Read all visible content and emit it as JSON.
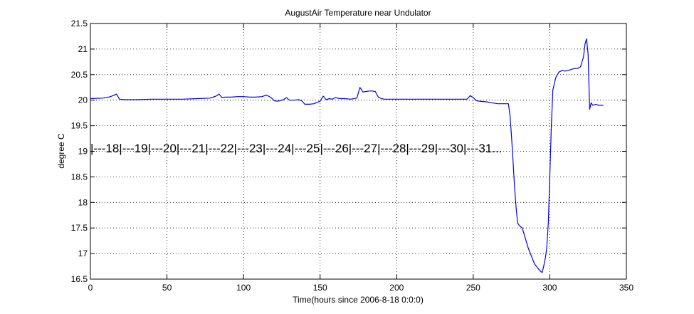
{
  "chart_data": {
    "type": "line",
    "title": "AugustAir Temperature near Undulator",
    "xlabel": "Time(hours since 2006-8-18 0:0:0)",
    "ylabel": "degree C",
    "xlim": [
      0,
      350
    ],
    "ylim": [
      16.5,
      21.5
    ],
    "xticks": [
      0,
      50,
      100,
      150,
      200,
      250,
      300,
      350
    ],
    "yticks": [
      16.5,
      17,
      17.5,
      18,
      18.5,
      19,
      19.5,
      20,
      20.5,
      21,
      21.5
    ],
    "grid": true,
    "line_color": "#0000ee",
    "day_marker_text": "|---18|---19|---20|---21|---22|---23|---24|---25|---26|---27|---28|---29|---30|---31...",
    "series": [
      {
        "x": [
          0,
          8,
          12,
          15,
          17,
          19,
          22,
          30,
          40,
          50,
          60,
          70,
          78,
          82,
          84,
          86,
          88,
          92,
          96,
          100,
          104,
          108,
          112,
          115,
          118,
          120,
          122,
          124,
          126,
          128,
          130,
          133,
          136,
          138,
          140,
          143,
          146,
          150,
          152,
          154,
          156,
          158,
          160,
          163,
          166,
          170,
          174,
          176,
          178,
          180,
          182,
          184,
          186,
          188,
          190,
          192,
          196,
          200,
          210,
          220,
          230,
          240,
          246,
          248,
          250,
          252,
          254,
          258,
          262,
          266,
          270,
          273,
          274,
          275,
          276,
          277,
          278,
          279,
          280,
          282,
          284,
          286,
          288,
          290,
          292,
          294,
          295,
          296,
          297,
          298,
          299,
          300,
          301,
          302,
          304,
          306,
          308,
          310,
          312,
          314,
          316,
          318,
          320,
          322,
          323,
          324,
          325,
          326,
          327,
          328,
          330,
          332,
          335
        ],
        "y": [
          20.03,
          20.04,
          20.06,
          20.09,
          20.12,
          20.02,
          20.01,
          20.01,
          20.02,
          20.02,
          20.02,
          20.03,
          20.04,
          20.08,
          20.12,
          20.05,
          20.06,
          20.06,
          20.07,
          20.07,
          20.06,
          20.06,
          20.07,
          20.1,
          20.05,
          19.99,
          19.98,
          19.99,
          20.01,
          20.05,
          20.0,
          20.0,
          20.01,
          19.99,
          19.92,
          19.92,
          19.93,
          19.98,
          20.08,
          20.01,
          20.03,
          20.02,
          20.05,
          20.03,
          20.03,
          20.02,
          20.04,
          20.25,
          20.16,
          20.17,
          20.18,
          20.18,
          20.17,
          20.06,
          20.03,
          20.02,
          20.02,
          20.02,
          20.02,
          20.02,
          20.02,
          20.02,
          20.02,
          20.09,
          20.05,
          19.99,
          19.98,
          19.97,
          19.95,
          19.93,
          19.93,
          19.93,
          19.7,
          19.3,
          18.8,
          18.3,
          17.9,
          17.6,
          17.55,
          17.5,
          17.3,
          17.1,
          16.95,
          16.8,
          16.72,
          16.65,
          16.63,
          16.75,
          16.9,
          17.1,
          17.6,
          18.5,
          19.5,
          20.2,
          20.45,
          20.55,
          20.58,
          20.57,
          20.58,
          20.6,
          20.62,
          20.62,
          20.65,
          20.85,
          21.1,
          21.2,
          20.9,
          19.82,
          19.95,
          19.9,
          19.92,
          19.9,
          19.9
        ]
      }
    ]
  }
}
